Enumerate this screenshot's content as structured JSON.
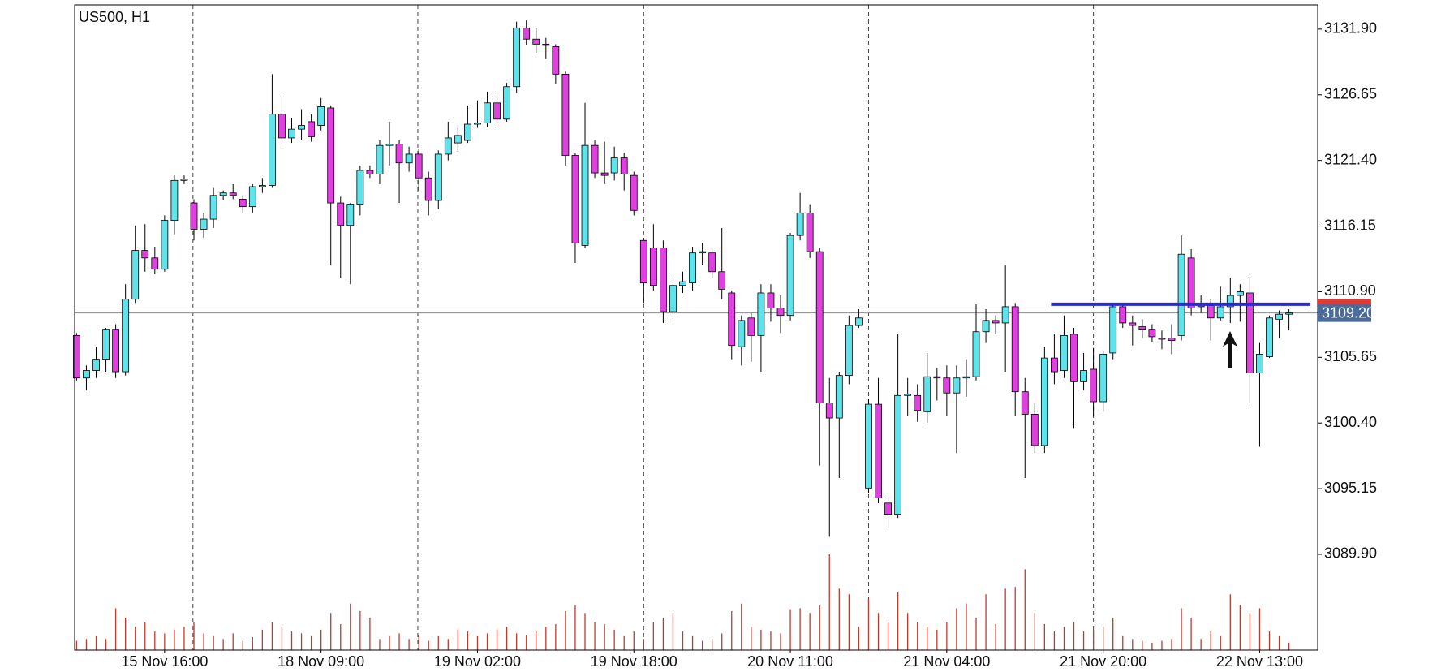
{
  "chart_data": {
    "type": "candlestick",
    "title": "US500, H1",
    "categories": [
      null,
      null,
      null,
      null,
      null,
      null,
      null,
      null,
      null,
      "15 Nov 16:00",
      null,
      null,
      null,
      null,
      null,
      null,
      null,
      null,
      null,
      null,
      null,
      null,
      null,
      null,
      null,
      "18 Nov 09:00",
      null,
      null,
      null,
      null,
      null,
      null,
      null,
      null,
      null,
      null,
      null,
      null,
      null,
      null,
      null,
      "19 Nov 02:00",
      null,
      null,
      null,
      null,
      null,
      null,
      null,
      null,
      null,
      null,
      null,
      null,
      null,
      null,
      null,
      "19 Nov 18:00",
      null,
      null,
      null,
      null,
      null,
      null,
      null,
      null,
      null,
      null,
      null,
      null,
      null,
      null,
      null,
      "20 Nov 11:00",
      null,
      null,
      null,
      null,
      null,
      null,
      null,
      null,
      null,
      null,
      null,
      null,
      null,
      null,
      null,
      "21 Nov 04:00",
      null,
      null,
      null,
      null,
      null,
      null,
      null,
      null,
      null,
      null,
      null,
      null,
      null,
      null,
      null,
      "21 Nov 20:00",
      null,
      null,
      null,
      null,
      null,
      null,
      null,
      null,
      null,
      null,
      null,
      null,
      null,
      null,
      null,
      "22 Nov 13:00",
      null,
      null,
      null
    ],
    "open": [
      3107.4,
      3104.0,
      3104.6,
      3105.5,
      3107.9,
      3104.5,
      3110.3,
      3114.2,
      3113.6,
      3112.7,
      3116.6,
      3119.8,
      3118.0,
      3115.9,
      3116.7,
      3118.6,
      3118.8,
      3118.3,
      3117.7,
      3119.3,
      3119.4,
      3125.1,
      3123.2,
      3123.9,
      3124.5,
      3124.2,
      3125.6,
      3118.0,
      3116.2,
      3117.9,
      3120.6,
      3120.3,
      3122.6,
      3122.7,
      3121.2,
      3121.9,
      3120.0,
      3118.2,
      3121.9,
      3122.8,
      3123.0,
      3124.3,
      3124.4,
      3126.0,
      3124.7,
      3127.3,
      3132.0,
      3131.1,
      3130.7,
      3130.5,
      3128.3,
      3121.8,
      3114.6,
      3122.6,
      3120.4,
      3120.4,
      3121.6,
      3120.2,
      3115.0,
      3114.4,
      3114.4,
      3109.3,
      3111.4,
      3111.6,
      3114.0,
      3114.0,
      3112.5,
      3110.8,
      3106.5,
      3108.8,
      3107.4,
      3110.8,
      3109.6,
      3109.0,
      3115.4,
      3117.2,
      3114.1,
      3102.0,
      3100.8,
      3104.2,
      3108.2,
      3095.2,
      3101.9,
      3094.0,
      3093.1,
      3102.6,
      3102.6,
      3101.3,
      3104.1,
      3104.0,
      3102.8,
      3104.0,
      3104.1,
      3107.7,
      3108.6,
      3108.4,
      3109.7,
      3102.9,
      3101.1,
      3098.6,
      3105.6,
      3104.6,
      3107.5,
      3103.7,
      3104.7,
      3102.1,
      3106.0,
      3109.7,
      3108.4,
      3108.1,
      3107.9,
      3107.2,
      3107.2,
      3107.4,
      3113.6,
      3109.9,
      3109.8,
      3108.8,
      3109.7,
      3110.6,
      3110.8,
      3104.4,
      3105.7,
      3108.7,
      3109.1
    ],
    "high": [
      3107.6,
      3105.0,
      3106.5,
      3108.0,
      3108.3,
      3111.5,
      3116.2,
      3116.3,
      3114.5,
      3117.0,
      3120.2,
      3120.2,
      3118.3,
      3117.2,
      3119.2,
      3119.0,
      3119.5,
      3118.6,
      3119.5,
      3120.0,
      3128.3,
      3126.6,
      3124.8,
      3125.5,
      3125.1,
      3126.4,
      3125.8,
      3118.5,
      3118.0,
      3121.0,
      3121.0,
      3123.0,
      3124.5,
      3123.0,
      3122.5,
      3122.3,
      3120.5,
      3122.2,
      3124.5,
      3124.0,
      3125.8,
      3126.2,
      3126.9,
      3126.8,
      3127.6,
      3132.5,
      3132.6,
      3132.0,
      3131.2,
      3130.7,
      3128.5,
      3122.0,
      3126.0,
      3123.0,
      3122.9,
      3122.5,
      3122.0,
      3120.5,
      3115.2,
      3116.3,
      3115.0,
      3112.0,
      3112.5,
      3114.5,
      3114.8,
      3114.2,
      3116.0,
      3111.0,
      3109.0,
      3109.2,
      3111.5,
      3111.5,
      3110.6,
      3115.6,
      3118.8,
      3117.9,
      3114.4,
      3104.0,
      3104.5,
      3109.0,
      3109.5,
      3102.3,
      3104.0,
      3094.5,
      3107.5,
      3104.0,
      3103.5,
      3106.0,
      3104.8,
      3105.0,
      3105.0,
      3105.5,
      3109.9,
      3109.5,
      3109.0,
      3113.0,
      3110.0,
      3104.0,
      3102.0,
      3106.5,
      3107.5,
      3109.0,
      3108.0,
      3106.0,
      3106.4,
      3106.2,
      3110.0,
      3110.0,
      3109.0,
      3108.7,
      3108.3,
      3107.8,
      3108.3,
      3115.4,
      3114.3,
      3110.6,
      3110.3,
      3111.3,
      3112.0,
      3111.5,
      3112.1,
      3106.8,
      3109.0,
      3109.4,
      3109.5
    ],
    "low": [
      3103.8,
      3103.0,
      3104.0,
      3104.5,
      3104.0,
      3104.2,
      3110.0,
      3112.5,
      3112.3,
      3112.5,
      3115.5,
      3119.5,
      3115.0,
      3115.2,
      3116.0,
      3118.2,
      3118.3,
      3117.2,
      3117.2,
      3118.8,
      3119.2,
      3122.5,
      3122.8,
      3123.0,
      3122.9,
      3123.8,
      3113.0,
      3112.0,
      3111.5,
      3117.0,
      3120.0,
      3119.5,
      3121.0,
      3118.0,
      3120.5,
      3119.0,
      3117.0,
      3117.5,
      3121.4,
      3122.1,
      3122.8,
      3124.0,
      3124.1,
      3124.3,
      3124.5,
      3126.8,
      3130.6,
      3130.0,
      3129.5,
      3127.5,
      3121.0,
      3113.2,
      3114.4,
      3120.0,
      3119.5,
      3119.8,
      3119.0,
      3117.0,
      3110.0,
      3111.0,
      3108.4,
      3108.5,
      3110.8,
      3111.0,
      3113.0,
      3112.0,
      3110.3,
      3105.5,
      3105.0,
      3105.3,
      3104.5,
      3108.5,
      3107.6,
      3108.6,
      3115.0,
      3113.6,
      3097.0,
      3091.3,
      3096.0,
      3103.5,
      3108.0,
      3094.8,
      3094.0,
      3092.0,
      3092.8,
      3101.0,
      3100.5,
      3100.4,
      3102.2,
      3101.0,
      3098.0,
      3102.5,
      3103.8,
      3106.8,
      3107.5,
      3104.5,
      3101.0,
      3096.0,
      3098.0,
      3098.0,
      3103.5,
      3104.0,
      3100.0,
      3103.0,
      3101.0,
      3101.3,
      3105.5,
      3108.0,
      3106.6,
      3107.2,
      3106.9,
      3106.3,
      3105.9,
      3107.0,
      3109.0,
      3109.2,
      3107.0,
      3108.6,
      3108.4,
      3108.5,
      3102.0,
      3098.5,
      3105.6,
      3107.2,
      3107.8
    ],
    "close": [
      3104.0,
      3104.6,
      3105.5,
      3107.9,
      3104.5,
      3110.3,
      3114.2,
      3113.6,
      3112.7,
      3116.6,
      3119.8,
      3119.9,
      3115.9,
      3116.7,
      3118.6,
      3118.8,
      3118.6,
      3117.7,
      3119.3,
      3119.4,
      3125.1,
      3123.2,
      3123.9,
      3124.2,
      3123.3,
      3125.7,
      3118.0,
      3116.2,
      3117.9,
      3120.6,
      3120.3,
      3122.6,
      3122.7,
      3121.2,
      3121.9,
      3120.0,
      3118.2,
      3121.9,
      3123.2,
      3123.4,
      3124.3,
      3124.4,
      3126.0,
      3124.7,
      3127.3,
      3132.0,
      3131.1,
      3130.7,
      3130.6,
      3128.3,
      3121.8,
      3114.8,
      3122.6,
      3120.4,
      3120.2,
      3121.6,
      3120.3,
      3117.4,
      3111.6,
      3111.4,
      3109.3,
      3111.4,
      3111.7,
      3114.0,
      3114.1,
      3112.5,
      3111.1,
      3106.6,
      3108.6,
      3107.4,
      3110.8,
      3109.6,
      3109.0,
      3115.4,
      3117.2,
      3114.1,
      3102.0,
      3100.8,
      3104.2,
      3108.2,
      3108.8,
      3101.9,
      3094.4,
      3093.1,
      3102.6,
      3102.7,
      3101.4,
      3104.1,
      3104.0,
      3102.8,
      3104.0,
      3104.1,
      3107.7,
      3108.6,
      3108.4,
      3109.7,
      3102.9,
      3101.1,
      3098.6,
      3105.6,
      3104.5,
      3107.4,
      3103.7,
      3104.6,
      3102.1,
      3105.9,
      3109.7,
      3108.4,
      3108.2,
      3107.9,
      3107.3,
      3107.1,
      3107.0,
      3113.9,
      3109.6,
      3109.7,
      3108.8,
      3109.7,
      3110.6,
      3110.9,
      3104.4,
      3105.9,
      3108.8,
      3109.1,
      3109.2
    ],
    "volume": [
      10,
      12,
      15,
      12,
      45,
      35,
      25,
      30,
      20,
      18,
      22,
      25,
      30,
      18,
      15,
      12,
      18,
      10,
      14,
      22,
      30,
      25,
      20,
      18,
      15,
      22,
      40,
      28,
      50,
      42,
      35,
      12,
      15,
      18,
      12,
      16,
      10,
      15,
      12,
      22,
      20,
      15,
      18,
      22,
      25,
      18,
      16,
      20,
      25,
      28,
      42,
      48,
      40,
      30,
      28,
      22,
      15,
      20,
      12,
      30,
      35,
      40,
      20,
      15,
      10,
      12,
      18,
      42,
      50,
      25,
      22,
      20,
      18,
      44,
      45,
      40,
      48,
      103,
      66,
      60,
      25,
      55,
      40,
      30,
      62,
      40,
      30,
      25,
      22,
      30,
      45,
      50,
      35,
      60,
      28,
      66,
      68,
      87,
      40,
      28,
      20,
      25,
      30,
      20,
      22,
      25,
      35,
      15,
      12,
      10,
      8,
      10,
      12,
      45,
      35,
      12,
      20,
      15,
      60,
      48,
      40,
      45,
      20,
      15,
      8
    ],
    "up_color": "#5fe3ea",
    "down_color": "#e040e0",
    "volume_color": "#c0392b",
    "ylim": [
      3082.24,
      3133.84
    ],
    "yticks": [
      {
        "value": 3131.9,
        "label": "3131.90"
      },
      {
        "value": 3126.65,
        "label": "3126.65"
      },
      {
        "value": 3121.4,
        "label": "3121.40"
      },
      {
        "value": 3116.15,
        "label": "3116.15"
      },
      {
        "value": 3110.9,
        "label": "3110.90"
      },
      {
        "value": 3105.65,
        "label": "3105.65"
      },
      {
        "value": 3100.4,
        "label": "3100.40"
      },
      {
        "value": 3095.15,
        "label": "3095.15"
      },
      {
        "value": 3089.9,
        "label": "3089.90"
      }
    ],
    "bid": {
      "value": 3109.2,
      "label": "3109.20"
    },
    "ask": 3109.6,
    "level": 3109.9
  }
}
